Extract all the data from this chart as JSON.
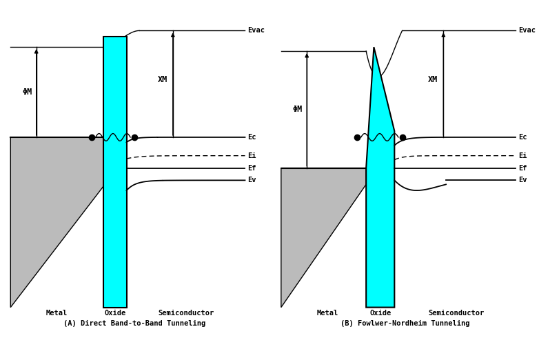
{
  "bg_color": "#ffffff",
  "cyan_color": "#00ffff",
  "gray_color": "#bbbbbb",
  "diagrams": {
    "A": {
      "evac_label": "Evac",
      "phiM_label": "ΦM",
      "xM_label": "XM",
      "Ec_label": "Ec",
      "Ei_label": "Ei",
      "Ef_label": "Ef",
      "Ev_label": "Ev",
      "metal_label": "Metal",
      "oxide_label": "Oxide",
      "semi_label": "Semiconductor",
      "caption": "(A) Direct Band-to-Band Tunneling"
    },
    "B": {
      "evac_label": "Evac",
      "phiM_label": "ΦM",
      "xM_label": "XM",
      "Ec_label": "Ec",
      "Ei_label": "Ei",
      "Ef_label": "Ef",
      "Ev_label": "Ev",
      "metal_label": "Metal",
      "oxide_label": "Oxide",
      "semi_label": "Semiconductor",
      "caption": "(B) Fowlwer-Nordheim Tunneling"
    }
  }
}
